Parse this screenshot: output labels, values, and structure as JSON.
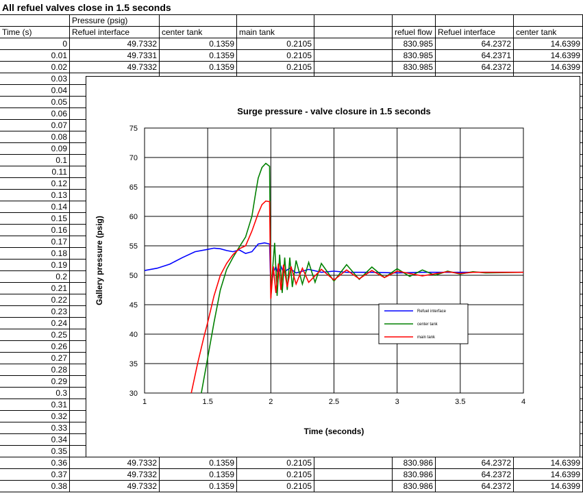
{
  "sheet": {
    "title": "All refuel valves close in 1.5 seconds",
    "header_row1": {
      "b": "Pressure (psig)"
    },
    "header_row2": {
      "a": "Time (s)",
      "b": "Refuel interface",
      "c": "center tank",
      "d": "main tank",
      "e": "",
      "f": "refuel flow",
      "g": "Refuel interface",
      "h": "center tank"
    },
    "rows": [
      [
        "0",
        "49.7332",
        "0.1359",
        "0.2105",
        "830.985",
        "64.2372",
        "14.6399"
      ],
      [
        "0.01",
        "49.7331",
        "0.1359",
        "0.2105",
        "830.985",
        "64.2371",
        "14.6399"
      ],
      [
        "0.02",
        "49.7332",
        "0.1359",
        "0.2105",
        "830.985",
        "64.2372",
        "14.6399"
      ],
      [
        "0.03",
        "",
        "",
        "",
        "",
        "",
        ""
      ],
      [
        "0.04",
        "",
        "",
        "",
        "",
        "",
        ""
      ],
      [
        "0.05",
        "",
        "",
        "",
        "",
        "",
        ""
      ],
      [
        "0.06",
        "",
        "",
        "",
        "",
        "",
        ""
      ],
      [
        "0.07",
        "",
        "",
        "",
        "",
        "",
        ""
      ],
      [
        "0.08",
        "",
        "",
        "",
        "",
        "",
        ""
      ],
      [
        "0.09",
        "",
        "",
        "",
        "",
        "",
        ""
      ],
      [
        "0.1",
        "",
        "",
        "",
        "",
        "",
        ""
      ],
      [
        "0.11",
        "",
        "",
        "",
        "",
        "",
        ""
      ],
      [
        "0.12",
        "",
        "",
        "",
        "",
        "",
        ""
      ],
      [
        "0.13",
        "",
        "",
        "",
        "",
        "",
        ""
      ],
      [
        "0.14",
        "",
        "",
        "",
        "",
        "",
        ""
      ],
      [
        "0.15",
        "",
        "",
        "",
        "",
        "",
        ""
      ],
      [
        "0.16",
        "",
        "",
        "",
        "",
        "",
        ""
      ],
      [
        "0.17",
        "",
        "",
        "",
        "",
        "",
        ""
      ],
      [
        "0.18",
        "",
        "",
        "",
        "",
        "",
        ""
      ],
      [
        "0.19",
        "",
        "",
        "",
        "",
        "",
        ""
      ],
      [
        "0.2",
        "",
        "",
        "",
        "",
        "",
        ""
      ],
      [
        "0.21",
        "",
        "",
        "",
        "",
        "",
        ""
      ],
      [
        "0.22",
        "",
        "",
        "",
        "",
        "",
        ""
      ],
      [
        "0.23",
        "",
        "",
        "",
        "",
        "",
        ""
      ],
      [
        "0.24",
        "",
        "",
        "",
        "",
        "",
        ""
      ],
      [
        "0.25",
        "",
        "",
        "",
        "",
        "",
        ""
      ],
      [
        "0.26",
        "",
        "",
        "",
        "",
        "",
        ""
      ],
      [
        "0.27",
        "",
        "",
        "",
        "",
        "",
        ""
      ],
      [
        "0.28",
        "",
        "",
        "",
        "",
        "",
        ""
      ],
      [
        "0.29",
        "",
        "",
        "",
        "",
        "",
        ""
      ],
      [
        "0.3",
        "",
        "",
        "",
        "",
        "",
        ""
      ],
      [
        "0.31",
        "",
        "",
        "",
        "",
        "",
        ""
      ],
      [
        "0.32",
        "",
        "",
        "",
        "",
        "",
        ""
      ],
      [
        "0.33",
        "",
        "",
        "",
        "",
        "",
        ""
      ],
      [
        "0.34",
        "",
        "",
        "",
        "",
        "",
        ""
      ],
      [
        "0.35",
        "",
        "",
        "",
        "",
        "",
        ""
      ],
      [
        "0.36",
        "49.7332",
        "0.1359",
        "0.2105",
        "830.986",
        "64.2372",
        "14.6399"
      ],
      [
        "0.37",
        "49.7332",
        "0.1359",
        "0.2105",
        "830.986",
        "64.2372",
        "14.6399"
      ],
      [
        "0.38",
        "49.7332",
        "0.1359",
        "0.2105",
        "830.986",
        "64.2372",
        "14.6399"
      ]
    ]
  },
  "chart_data": {
    "type": "line",
    "title": "Surge pressure  - valve closure  in 1.5 seconds",
    "xlabel": "Time (seconds)",
    "ylabel": "Gallery pressure (psig)",
    "xlim": [
      1,
      4
    ],
    "ylim": [
      30,
      75
    ],
    "xticks": [
      1,
      1.5,
      2,
      2.5,
      3,
      3.5,
      4
    ],
    "yticks": [
      30,
      35,
      40,
      45,
      50,
      55,
      60,
      65,
      70,
      75
    ],
    "grid": true,
    "legend_position": "lower-right",
    "series": [
      {
        "name": "Refuel interface",
        "color": "#0000ff",
        "x": [
          1,
          1.1,
          1.2,
          1.3,
          1.4,
          1.5,
          1.55,
          1.6,
          1.65,
          1.7,
          1.75,
          1.8,
          1.85,
          1.9,
          1.95,
          1.99,
          2.0,
          2.02,
          2.04,
          2.06,
          2.08,
          2.1,
          2.15,
          2.2,
          2.3,
          2.4,
          2.5,
          2.6,
          2.8,
          3.0,
          3.2,
          3.5,
          4.0
        ],
        "y": [
          50.8,
          51.2,
          51.9,
          53.0,
          54.0,
          54.4,
          54.6,
          54.5,
          54.2,
          54.0,
          54.3,
          53.7,
          54.0,
          55.3,
          55.5,
          55.3,
          47.5,
          50.5,
          51.5,
          50.0,
          51.5,
          50.5,
          51.2,
          50.4,
          51.0,
          50.5,
          50.7,
          50.5,
          50.5,
          50.4,
          50.5,
          50.5,
          50.5
        ]
      },
      {
        "name": "center tank",
        "color": "#008000",
        "x": [
          1.45,
          1.5,
          1.55,
          1.6,
          1.65,
          1.7,
          1.75,
          1.8,
          1.85,
          1.88,
          1.9,
          1.93,
          1.96,
          1.99,
          2.0,
          2.01,
          2.03,
          2.05,
          2.07,
          2.09,
          2.11,
          2.13,
          2.15,
          2.17,
          2.2,
          2.25,
          2.3,
          2.35,
          2.4,
          2.5,
          2.6,
          2.7,
          2.8,
          2.9,
          3.0,
          3.1,
          3.2,
          3.3,
          3.4,
          3.5,
          3.6,
          3.7,
          4.0
        ],
        "y": [
          30,
          36,
          42,
          47.5,
          51,
          53,
          54.8,
          56.5,
          60,
          64,
          66.5,
          68.3,
          69,
          68.5,
          46,
          50,
          55.5,
          46.5,
          53.5,
          47,
          53,
          47.5,
          53,
          48,
          52.5,
          48.5,
          52.2,
          48.8,
          52,
          49,
          51.8,
          49.3,
          51.4,
          49.6,
          51.1,
          49.8,
          50.9,
          50.0,
          50.7,
          50.2,
          50.6,
          50.4,
          50.5
        ]
      },
      {
        "name": "main tank",
        "color": "#ff0000",
        "x": [
          1.37,
          1.42,
          1.47,
          1.5,
          1.55,
          1.6,
          1.65,
          1.7,
          1.75,
          1.8,
          1.85,
          1.9,
          1.93,
          1.96,
          1.99,
          2.0,
          2.02,
          2.04,
          2.06,
          2.08,
          2.1,
          2.13,
          2.16,
          2.2,
          2.25,
          2.3,
          2.4,
          2.5,
          2.6,
          2.7,
          2.8,
          2.9,
          3.0,
          3.2,
          3.4,
          3.5,
          3.6,
          4.0
        ],
        "y": [
          30,
          35,
          39.5,
          42,
          46.5,
          50,
          52,
          53.5,
          54.5,
          55,
          57.5,
          60.5,
          62,
          62.6,
          62.5,
          46,
          51.5,
          47,
          52,
          47.5,
          51.8,
          48,
          51.5,
          48.5,
          51.2,
          48.8,
          51,
          49.2,
          50.9,
          49.4,
          50.8,
          49.6,
          50.7,
          49.9,
          50.6,
          50.3,
          50.5,
          50.5
        ]
      }
    ]
  }
}
